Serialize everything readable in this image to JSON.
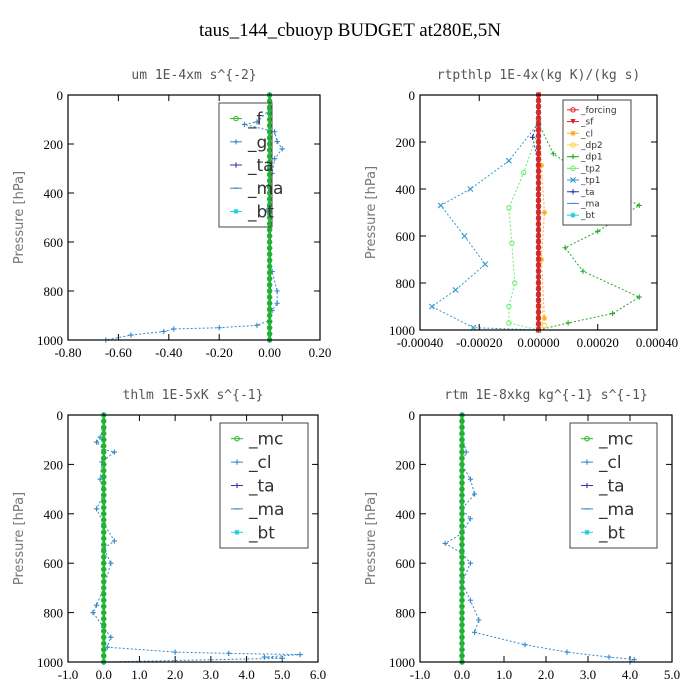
{
  "title": "taus_144_cbuoyp  BUDGET at280E,5N",
  "chart_data": [
    {
      "type": "line",
      "title": "um   1E-4xm s^{-2}",
      "ylabel": "Pressure [hPa]",
      "xlim": [
        -0.8,
        0.2
      ],
      "ylim": [
        1000,
        0
      ],
      "xticks": [
        "-0.80",
        "-0.60",
        "-0.40",
        "-0.20",
        "0.00",
        "0.20"
      ],
      "xtick_values": [
        -0.8,
        -0.6,
        -0.4,
        -0.2,
        0.0,
        0.2
      ],
      "yticks": [
        "0",
        "200",
        "400",
        "600",
        "800",
        "1000"
      ],
      "ytick_values": [
        0,
        200,
        400,
        600,
        800,
        1000
      ],
      "legend": {
        "entries": [
          "_f",
          "_g",
          "_ta",
          "_ma",
          "_bt"
        ],
        "size": "big"
      },
      "series": [
        {
          "name": "_f",
          "color": "#22bb22",
          "marker": "o",
          "points": [
            [
              0.0,
              0
            ],
            [
              0.0,
              1000
            ]
          ]
        },
        {
          "name": "_g",
          "color": "#3388cc",
          "marker": "+",
          "points": [
            [
              0.0,
              60
            ],
            [
              -0.05,
              110
            ],
            [
              -0.1,
              120
            ],
            [
              0.02,
              150
            ],
            [
              0.03,
              190
            ],
            [
              0.05,
              220
            ],
            [
              0.02,
              260
            ],
            [
              0.01,
              320
            ],
            [
              0.0,
              400
            ],
            [
              -0.01,
              470
            ],
            [
              0.0,
              550
            ],
            [
              0.0,
              650
            ],
            [
              0.01,
              720
            ],
            [
              0.03,
              800
            ],
            [
              0.03,
              850
            ],
            [
              0.01,
              880
            ],
            [
              0.0,
              920
            ],
            [
              -0.05,
              940
            ],
            [
              -0.2,
              950
            ],
            [
              -0.38,
              955
            ],
            [
              -0.42,
              965
            ],
            [
              -0.55,
              980
            ],
            [
              -0.65,
              1000
            ]
          ]
        },
        {
          "name": "_ta",
          "color": "#3333aa",
          "marker": "+",
          "points": [
            [
              0.0,
              0
            ],
            [
              0.0,
              1000
            ]
          ]
        },
        {
          "name": "_ma",
          "color": "#3388cc",
          "marker": "-",
          "points": [
            [
              0.0,
              0
            ],
            [
              0.0,
              1000
            ]
          ]
        },
        {
          "name": "_bt",
          "color": "#22ccdd",
          "marker": "*",
          "points": [
            [
              0.0,
              0
            ],
            [
              0.0,
              1000
            ]
          ]
        }
      ]
    },
    {
      "type": "line",
      "title": "rtpthlp   1E-4x(kg K)/(kg s)",
      "ylabel": "Pressure [hPa]",
      "xlim": [
        -0.0004,
        0.0004
      ],
      "ylim": [
        1000,
        0
      ],
      "xticks": [
        "-0.00040",
        "-0.00020",
        "0.00000",
        "0.00020",
        "0.00040"
      ],
      "xtick_values": [
        -0.0004,
        -0.0002,
        0.0,
        0.0002,
        0.0004
      ],
      "yticks": [
        "0",
        "200",
        "400",
        "600",
        "800",
        "1000"
      ],
      "ytick_values": [
        0,
        200,
        400,
        600,
        800,
        1000
      ],
      "legend": {
        "entries": [
          "_forcing",
          "_sf",
          "_cl",
          "_dp2",
          "_dp1",
          "_tp2",
          "_tp1",
          "_ta",
          "_ma",
          "_bt"
        ],
        "size": "small"
      },
      "series": [
        {
          "name": "_forcing",
          "color": "#dd2222",
          "marker": "o",
          "points": [
            [
              0.0,
              0
            ],
            [
              0.0,
              1000
            ]
          ]
        },
        {
          "name": "_sf",
          "color": "#dd2222",
          "marker": "v",
          "points": [
            [
              0.0,
              990
            ],
            [
              0.0,
              1000
            ]
          ]
        },
        {
          "name": "_cl",
          "color": "#ffaa22",
          "marker": "*",
          "points": [
            [
              0.0,
              100
            ],
            [
              1e-05,
              300
            ],
            [
              2e-05,
              500
            ],
            [
              1e-05,
              700
            ],
            [
              2e-05,
              950
            ],
            [
              0.0,
              1000
            ]
          ]
        },
        {
          "name": "_dp2",
          "color": "#ffcc44",
          "marker": "o",
          "points": [
            [
              0.0,
              800
            ],
            [
              2e-05,
              980
            ],
            [
              0.0,
              1000
            ]
          ]
        },
        {
          "name": "_dp1",
          "color": "#22aa22",
          "marker": "+",
          "points": [
            [
              0.0,
              120
            ],
            [
              5e-05,
              250
            ],
            [
              0.0002,
              380
            ],
            [
              0.00034,
              470
            ],
            [
              0.0002,
              580
            ],
            [
              9e-05,
              650
            ],
            [
              0.00015,
              750
            ],
            [
              0.00034,
              860
            ],
            [
              0.00025,
              930
            ],
            [
              0.0001,
              970
            ],
            [
              0.0,
              1000
            ]
          ]
        },
        {
          "name": "_tp2",
          "color": "#66ee66",
          "marker": "o",
          "points": [
            [
              0.0,
              150
            ],
            [
              -5e-05,
              330
            ],
            [
              -0.0001,
              480
            ],
            [
              -9e-05,
              630
            ],
            [
              -8e-05,
              800
            ],
            [
              -0.0001,
              900
            ],
            [
              -0.0001,
              970
            ],
            [
              0.0,
              1000
            ]
          ]
        },
        {
          "name": "_tp1",
          "color": "#3399cc",
          "marker": "x",
          "points": [
            [
              0.0,
              120
            ],
            [
              -0.0001,
              280
            ],
            [
              -0.00023,
              400
            ],
            [
              -0.00033,
              470
            ],
            [
              -0.00025,
              600
            ],
            [
              -0.00018,
              720
            ],
            [
              -0.00028,
              830
            ],
            [
              -0.00036,
              900
            ],
            [
              -0.00022,
              990
            ],
            [
              0.0,
              1000
            ]
          ]
        },
        {
          "name": "_ta",
          "color": "#3333aa",
          "marker": "+",
          "points": [
            [
              0.0,
              100
            ],
            [
              -2e-05,
              180
            ],
            [
              0.0,
              300
            ],
            [
              0.0,
              1000
            ]
          ]
        },
        {
          "name": "_ma",
          "color": "#4488dd",
          "marker": "-",
          "points": [
            [
              0.0,
              0
            ],
            [
              0.0,
              1000
            ]
          ]
        },
        {
          "name": "_bt",
          "color": "#22ccdd",
          "marker": "*",
          "points": [
            [
              0.0,
              0
            ],
            [
              0.0,
              1000
            ]
          ]
        }
      ]
    },
    {
      "type": "line",
      "title": "thlm   1E-5xK  s^{-1}",
      "ylabel": "Pressure [hPa]",
      "xlim": [
        -1.0,
        6.0
      ],
      "ylim": [
        1000,
        0
      ],
      "xticks": [
        "-1.0",
        "0.0",
        "1.0",
        "2.0",
        "3.0",
        "4.0",
        "5.0",
        "6.0"
      ],
      "xtick_values": [
        -1,
        0,
        1,
        2,
        3,
        4,
        5,
        6
      ],
      "yticks": [
        "0",
        "200",
        "400",
        "600",
        "800",
        "1000"
      ],
      "ytick_values": [
        0,
        200,
        400,
        600,
        800,
        1000
      ],
      "legend": {
        "entries": [
          "_mc",
          "_cl",
          "_ta",
          "_ma",
          "_bt"
        ],
        "size": "big"
      },
      "series": [
        {
          "name": "_mc",
          "color": "#22bb22",
          "marker": "o",
          "points": [
            [
              0.0,
              0
            ],
            [
              0.0,
              1000
            ]
          ]
        },
        {
          "name": "_cl",
          "color": "#3388cc",
          "marker": "+",
          "points": [
            [
              0.0,
              60
            ],
            [
              -0.1,
              90
            ],
            [
              -0.2,
              110
            ],
            [
              0.0,
              140
            ],
            [
              0.3,
              150
            ],
            [
              -0.05,
              190
            ],
            [
              -0.1,
              260
            ],
            [
              0.0,
              320
            ],
            [
              -0.2,
              380
            ],
            [
              0.0,
              440
            ],
            [
              0.3,
              510
            ],
            [
              0.0,
              540
            ],
            [
              0.2,
              600
            ],
            [
              0.0,
              700
            ],
            [
              -0.2,
              770
            ],
            [
              -0.3,
              800
            ],
            [
              0.0,
              860
            ],
            [
              0.2,
              900
            ],
            [
              0.1,
              940
            ],
            [
              2.0,
              960
            ],
            [
              3.5,
              965
            ],
            [
              5.5,
              970
            ],
            [
              4.5,
              980
            ],
            [
              5.0,
              985
            ],
            [
              0.0,
              1000
            ]
          ]
        },
        {
          "name": "_ta",
          "color": "#3333aa",
          "marker": "+",
          "points": [
            [
              0.0,
              0
            ],
            [
              0.0,
              1000
            ]
          ]
        },
        {
          "name": "_ma",
          "color": "#3388cc",
          "marker": "-",
          "points": [
            [
              0.0,
              0
            ],
            [
              0.0,
              1000
            ]
          ]
        },
        {
          "name": "_bt",
          "color": "#22ccdd",
          "marker": "*",
          "points": [
            [
              0.0,
              0
            ],
            [
              0.0,
              1000
            ]
          ]
        }
      ]
    },
    {
      "type": "line",
      "title": "rtm   1E-8xkg  kg^{-1}  s^{-1}",
      "ylabel": "Pressure [hPa]",
      "xlim": [
        -1.0,
        5.0
      ],
      "ylim": [
        1000,
        0
      ],
      "xticks": [
        "-1.0",
        "0.0",
        "1.0",
        "2.0",
        "3.0",
        "4.0",
        "5.0"
      ],
      "xtick_values": [
        -1,
        0,
        1,
        2,
        3,
        4,
        5
      ],
      "yticks": [
        "0",
        "200",
        "400",
        "600",
        "800",
        "1000"
      ],
      "ytick_values": [
        0,
        200,
        400,
        600,
        800,
        1000
      ],
      "legend": {
        "entries": [
          "_mc",
          "_cl",
          "_ta",
          "_ma",
          "_bt"
        ],
        "size": "big"
      },
      "series": [
        {
          "name": "_mc",
          "color": "#22bb22",
          "marker": "o",
          "points": [
            [
              0.0,
              0
            ],
            [
              0.0,
              1000
            ]
          ]
        },
        {
          "name": "_cl",
          "color": "#3388cc",
          "marker": "+",
          "points": [
            [
              0.0,
              80
            ],
            [
              0.1,
              150
            ],
            [
              0.0,
              200
            ],
            [
              0.2,
              260
            ],
            [
              0.3,
              320
            ],
            [
              0.0,
              380
            ],
            [
              0.2,
              420
            ],
            [
              0.0,
              480
            ],
            [
              -0.4,
              520
            ],
            [
              0.0,
              560
            ],
            [
              0.2,
              600
            ],
            [
              0.0,
              680
            ],
            [
              0.2,
              750
            ],
            [
              0.4,
              830
            ],
            [
              0.3,
              880
            ],
            [
              1.5,
              930
            ],
            [
              2.5,
              960
            ],
            [
              3.5,
              980
            ],
            [
              4.1,
              990
            ],
            [
              4.0,
              1000
            ]
          ]
        },
        {
          "name": "_ta",
          "color": "#3333aa",
          "marker": "+",
          "points": [
            [
              0.0,
              0
            ],
            [
              0.0,
              1000
            ]
          ]
        },
        {
          "name": "_ma",
          "color": "#3388cc",
          "marker": "-",
          "points": [
            [
              0.0,
              0
            ],
            [
              0.0,
              1000
            ]
          ]
        },
        {
          "name": "_bt",
          "color": "#22ccdd",
          "marker": "*",
          "points": [
            [
              0.0,
              0
            ],
            [
              0.0,
              1000
            ]
          ]
        }
      ]
    }
  ]
}
